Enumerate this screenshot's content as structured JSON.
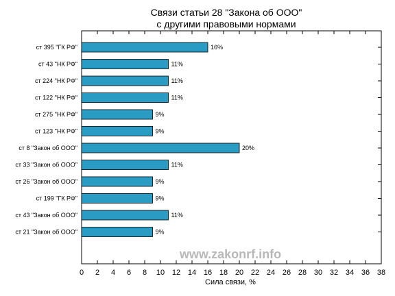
{
  "chart_data": {
    "type": "bar",
    "orientation": "horizontal",
    "title_line1": "Связи статьи 28 \"Закона об ООО\"",
    "title_line2": "с другими правовыми нормами",
    "xlabel": "Сила связи, %",
    "ylabel": "",
    "xlim": [
      0,
      38
    ],
    "x_ticks": [
      0,
      2,
      4,
      6,
      8,
      10,
      12,
      14,
      16,
      18,
      20,
      22,
      24,
      26,
      28,
      30,
      32,
      34,
      36,
      38
    ],
    "grid": false,
    "bar_color": "#2a9cc4",
    "bar_edge_color": "#000000",
    "categories": [
      "ст 395 \"ГК РФ\"",
      "ст 43 \"НК РФ\"",
      "ст 224 \"НК РФ\"",
      "ст 122 \"НК РФ\"",
      "ст 275 \"НК РФ\"",
      "ст 123 \"НК РФ\"",
      "ст 8 \"Закон об ООО\"",
      "ст 33 \"Закон об ООО\"",
      "ст 26 \"Закон об ООО\"",
      "ст 199 \"ГК РФ\"",
      "ст 43 \"Закон об ООО\"",
      "ст 21 \"Закон об ООО\""
    ],
    "values": [
      16,
      11,
      11,
      11,
      9,
      9,
      20,
      11,
      9,
      9,
      11,
      9
    ],
    "value_labels": [
      "16%",
      "11%",
      "11%",
      "11%",
      "9%",
      "9%",
      "20%",
      "11%",
      "9%",
      "9%",
      "11%",
      "9%"
    ],
    "watermark": "www.zakonrf.info"
  }
}
